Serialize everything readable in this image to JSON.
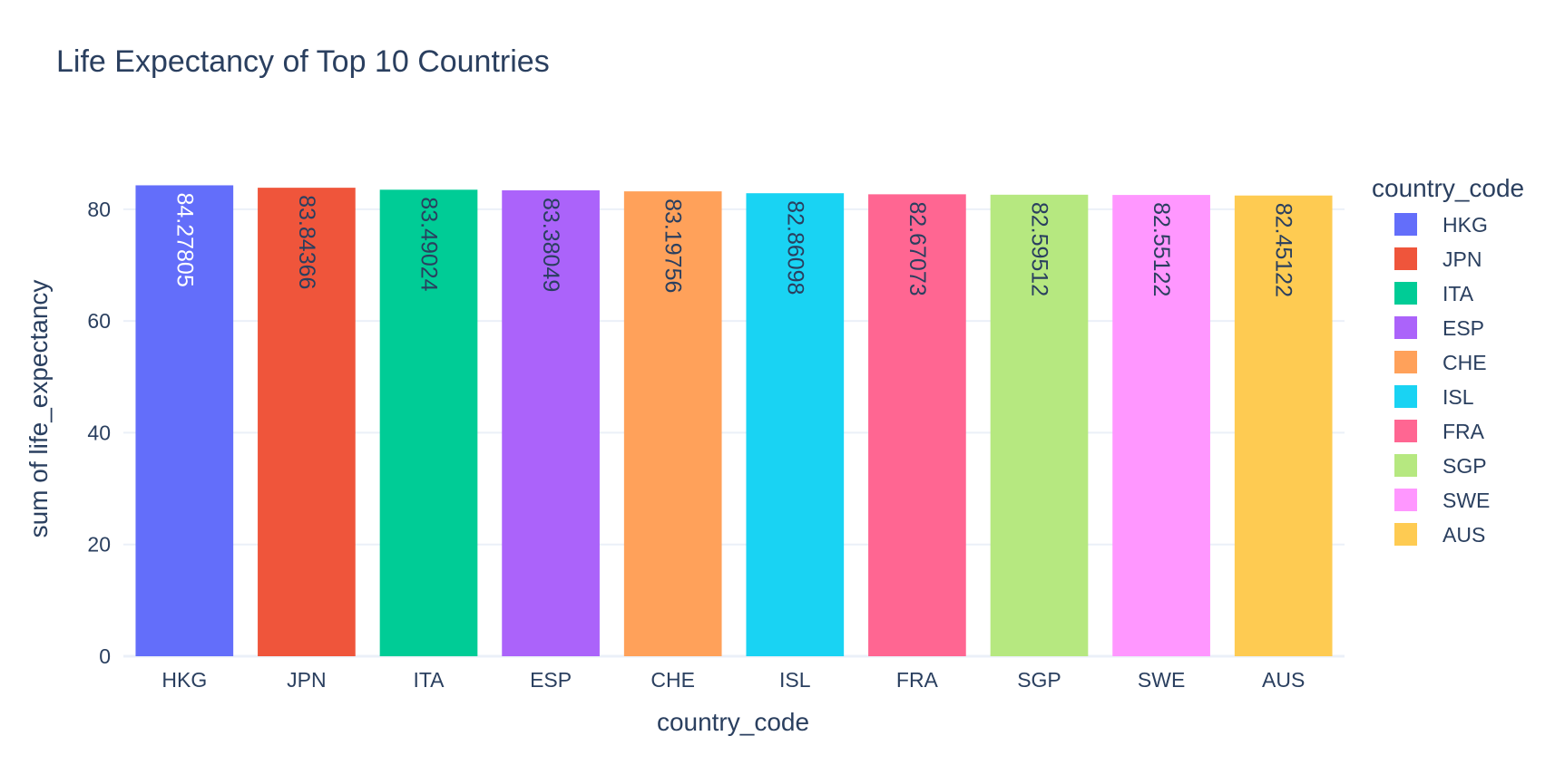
{
  "chart_data": {
    "type": "bar",
    "title": "Life Expectancy of Top 10 Countries",
    "xlabel": "country_code",
    "ylabel": "sum of life_expectancy",
    "ylim": [
      0,
      85
    ],
    "yticks": [
      0,
      20,
      40,
      60,
      80
    ],
    "grid": true,
    "legend": {
      "title": "country_code",
      "placement": "right"
    },
    "categories": [
      "HKG",
      "JPN",
      "ITA",
      "ESP",
      "CHE",
      "ISL",
      "FRA",
      "SGP",
      "SWE",
      "AUS"
    ],
    "values": [
      84.27805,
      83.84366,
      83.49024,
      83.38049,
      83.19756,
      82.86098,
      82.67073,
      82.59512,
      82.55122,
      82.45122
    ],
    "data_labels": [
      "84.27805",
      "83.84366",
      "83.49024",
      "83.38049",
      "83.19756",
      "82.86098",
      "82.67073",
      "82.59512",
      "82.55122",
      "82.45122"
    ],
    "series": [
      {
        "name": "HKG",
        "color": "#636efa",
        "label_color": "#ffffff"
      },
      {
        "name": "JPN",
        "color": "#ef553b",
        "label_color": "#2a3f5f"
      },
      {
        "name": "ITA",
        "color": "#00cc96",
        "label_color": "#2a3f5f"
      },
      {
        "name": "ESP",
        "color": "#ab63fa",
        "label_color": "#2a3f5f"
      },
      {
        "name": "CHE",
        "color": "#ffa15a",
        "label_color": "#2a3f5f"
      },
      {
        "name": "ISL",
        "color": "#19d3f3",
        "label_color": "#2a3f5f"
      },
      {
        "name": "FRA",
        "color": "#ff6692",
        "label_color": "#2a3f5f"
      },
      {
        "name": "SGP",
        "color": "#b6e880",
        "label_color": "#2a3f5f"
      },
      {
        "name": "SWE",
        "color": "#ff97ff",
        "label_color": "#2a3f5f"
      },
      {
        "name": "AUS",
        "color": "#fecb52",
        "label_color": "#2a3f5f"
      }
    ]
  }
}
